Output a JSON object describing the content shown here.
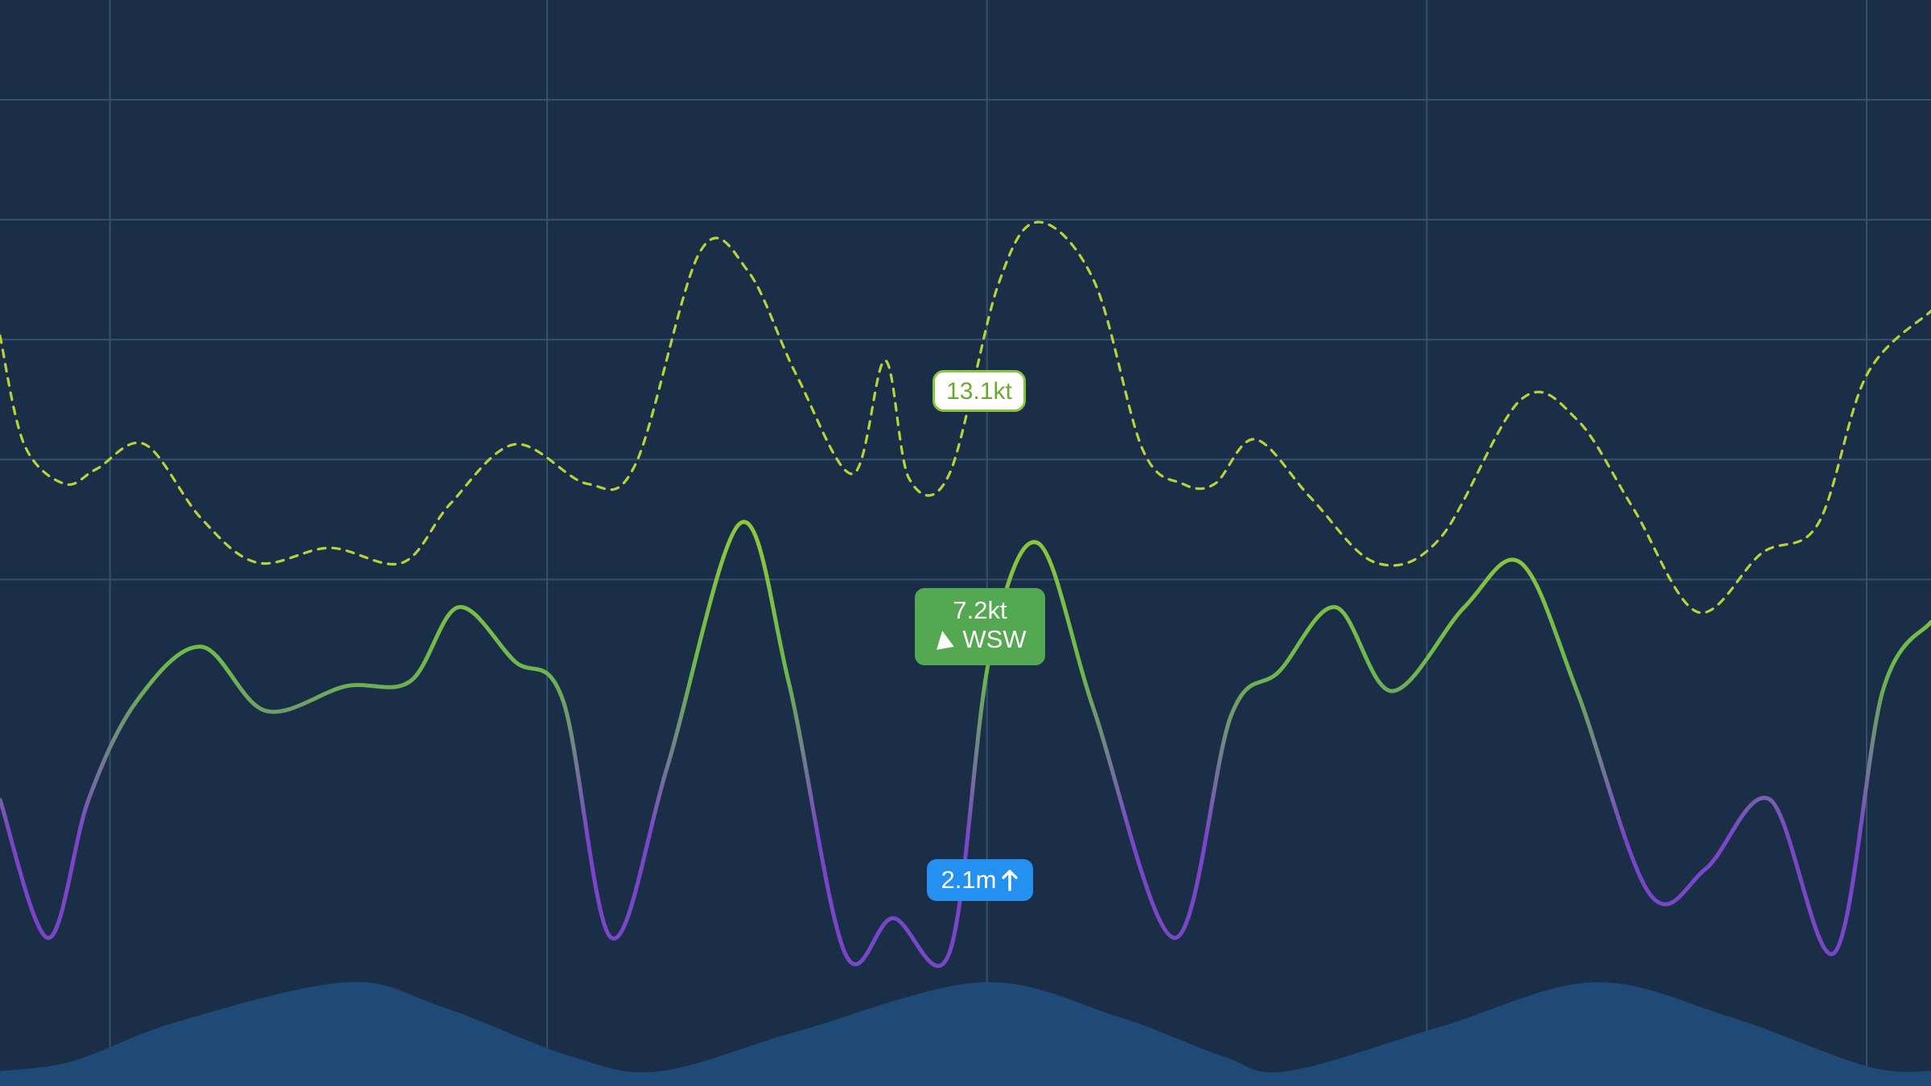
{
  "chart_data": {
    "type": "line",
    "x_range": [
      0,
      24
    ],
    "y_range": [
      0,
      22
    ],
    "grid": true,
    "series": [
      {
        "kind": "gust",
        "style": "dashed",
        "color": "#b8d23a",
        "values": [
          [
            0.0,
            15.2
          ],
          [
            0.3,
            13.0
          ],
          [
            0.8,
            12.2
          ],
          [
            1.2,
            12.5
          ],
          [
            1.8,
            13.0
          ],
          [
            2.5,
            11.5
          ],
          [
            3.2,
            10.6
          ],
          [
            4.1,
            10.9
          ],
          [
            5.0,
            10.6
          ],
          [
            5.6,
            11.8
          ],
          [
            6.4,
            13.0
          ],
          [
            7.3,
            12.2
          ],
          [
            7.9,
            12.6
          ],
          [
            8.7,
            16.9
          ],
          [
            9.3,
            16.5
          ],
          [
            9.9,
            14.4
          ],
          [
            10.6,
            12.4
          ],
          [
            11.0,
            14.7
          ],
          [
            11.3,
            12.3
          ],
          [
            11.8,
            12.4
          ],
          [
            12.4,
            16.2
          ],
          [
            12.9,
            17.5
          ],
          [
            13.6,
            16.3
          ],
          [
            14.2,
            12.9
          ],
          [
            14.7,
            12.2
          ],
          [
            15.1,
            12.2
          ],
          [
            15.6,
            13.1
          ],
          [
            16.3,
            11.9
          ],
          [
            17.1,
            10.6
          ],
          [
            17.9,
            11.1
          ],
          [
            18.9,
            13.9
          ],
          [
            19.6,
            13.5
          ],
          [
            20.3,
            11.7
          ],
          [
            21.1,
            9.6
          ],
          [
            21.9,
            10.8
          ],
          [
            22.6,
            11.4
          ],
          [
            23.2,
            14.4
          ],
          [
            24.0,
            15.7
          ]
        ]
      },
      {
        "kind": "wind",
        "style": "solid",
        "colors": [
          "#7a46c8",
          "#6bb74d",
          "#9acd37"
        ],
        "values": [
          [
            0.0,
            5.8
          ],
          [
            0.6,
            3.0
          ],
          [
            1.1,
            5.8
          ],
          [
            1.7,
            7.8
          ],
          [
            2.5,
            8.9
          ],
          [
            3.3,
            7.6
          ],
          [
            4.3,
            8.1
          ],
          [
            5.1,
            8.2
          ],
          [
            5.7,
            9.7
          ],
          [
            6.4,
            8.6
          ],
          [
            7.0,
            7.8
          ],
          [
            7.6,
            3.0
          ],
          [
            8.3,
            6.5
          ],
          [
            9.2,
            11.4
          ],
          [
            9.8,
            8.2
          ],
          [
            10.5,
            2.7
          ],
          [
            11.1,
            3.4
          ],
          [
            11.8,
            2.7
          ],
          [
            12.3,
            8.7
          ],
          [
            12.9,
            11.0
          ],
          [
            13.6,
            7.6
          ],
          [
            14.6,
            3.0
          ],
          [
            15.3,
            7.5
          ],
          [
            15.9,
            8.4
          ],
          [
            16.6,
            9.7
          ],
          [
            17.3,
            8.0
          ],
          [
            18.2,
            9.7
          ],
          [
            18.9,
            10.6
          ],
          [
            19.6,
            8.0
          ],
          [
            20.5,
            3.9
          ],
          [
            21.2,
            4.4
          ],
          [
            22.0,
            5.8
          ],
          [
            22.8,
            2.7
          ],
          [
            23.4,
            8.0
          ],
          [
            24.0,
            9.4
          ]
        ]
      },
      {
        "kind": "tide",
        "style": "area",
        "color": "#1f4a78",
        "values": [
          [
            0.0,
            0.3
          ],
          [
            0.9,
            0.5
          ],
          [
            2.2,
            1.3
          ],
          [
            4.3,
            2.1
          ],
          [
            5.5,
            1.6
          ],
          [
            7.1,
            0.6
          ],
          [
            8.2,
            0.3
          ],
          [
            9.9,
            1.1
          ],
          [
            12.2,
            2.1
          ],
          [
            13.9,
            1.4
          ],
          [
            15.2,
            0.6
          ],
          [
            16.0,
            0.3
          ],
          [
            17.9,
            1.2
          ],
          [
            19.8,
            2.1
          ],
          [
            21.5,
            1.4
          ],
          [
            23.2,
            0.4
          ],
          [
            24.0,
            0.3
          ]
        ]
      }
    ],
    "cursor_x": 12.2,
    "annotations": {
      "gust_label": "13.1kt",
      "wind_speed_label": "7.2kt",
      "wind_direction_label": "WSW",
      "tide_label": "2.1m"
    }
  },
  "theme": {
    "background": "#1b2e48",
    "grid_color": "#34506e",
    "gust_color": "#b8d23a",
    "wind_label_bg": "#55a852",
    "tide_fill": "#1f4a78",
    "tide_label_bg": "#2490ef"
  },
  "icons": {
    "wind_direction": "wind-direction-arrow-icon",
    "tide_trend": "arrow-up-icon"
  }
}
